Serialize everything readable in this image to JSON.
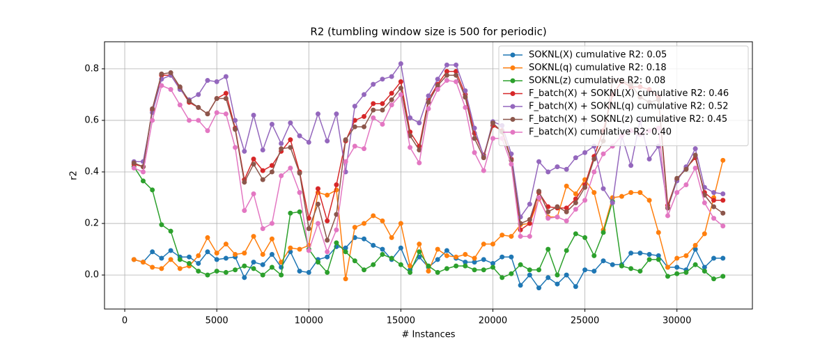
{
  "chart_data": {
    "type": "line",
    "title": "R2 (tumbling window size is 500 for periodic)",
    "x_label": "# Instances",
    "y_label": "r2",
    "x": [
      500,
      1000,
      1500,
      2000,
      2500,
      3000,
      3500,
      4000,
      4500,
      5000,
      5500,
      6000,
      6500,
      7000,
      7500,
      8000,
      8500,
      9000,
      9500,
      10000,
      10500,
      11000,
      11500,
      12000,
      12500,
      13000,
      13500,
      14000,
      14500,
      15000,
      15500,
      16000,
      16500,
      17000,
      17500,
      18000,
      18500,
      19000,
      19500,
      20000,
      20500,
      21000,
      21500,
      22000,
      22500,
      23000,
      23500,
      24000,
      24500,
      25000,
      25500,
      26000,
      26500,
      27000,
      27500,
      28000,
      28500,
      29000,
      29500,
      30000,
      30500,
      31000,
      31500,
      32000,
      32500
    ],
    "xlim": [
      -1100,
      34100
    ],
    "xticks": [
      0,
      5000,
      10000,
      15000,
      20000,
      25000,
      30000
    ],
    "ylim": [
      -0.132,
      0.905
    ],
    "yticks": [
      {
        "value": 0,
        "label": "0.0"
      },
      0.2,
      0.4,
      0.6,
      0.8
    ],
    "grid": true,
    "legend": "upper right",
    "series": [
      {
        "name": "SOKNL(X) cumulative R2: 0.05",
        "color": "#1f77b4",
        "values": [
          0.06,
          0.05,
          0.09,
          0.065,
          0.095,
          0.07,
          0.07,
          0.045,
          0.09,
          0.06,
          0.065,
          0.07,
          -0.01,
          0.05,
          0.04,
          0.08,
          0.03,
          0.09,
          0.015,
          0.01,
          0.06,
          0.07,
          0.11,
          0.105,
          0.145,
          0.14,
          0.115,
          0.1,
          0.06,
          0.105,
          0.02,
          0.07,
          0.03,
          0.06,
          0.095,
          0.065,
          0.05,
          0.05,
          0.06,
          0.045,
          0.07,
          0.07,
          -0.04,
          0.0,
          -0.05,
          -0.01,
          -0.035,
          0.0,
          -0.045,
          0.02,
          0.015,
          0.055,
          0.04,
          0.04,
          0.085,
          0.085,
          0.08,
          0.075,
          0.03,
          0.03,
          0.02,
          0.1,
          0.03,
          0.065,
          0.065
        ]
      },
      {
        "name": "SOKNL(q) cumulative R2: 0.18",
        "color": "#ff7f0e",
        "values": [
          0.06,
          0.05,
          0.03,
          0.025,
          0.06,
          0.025,
          0.035,
          0.075,
          0.145,
          0.085,
          0.12,
          0.08,
          0.085,
          0.15,
          0.08,
          0.14,
          0.05,
          0.105,
          0.1,
          0.115,
          0.32,
          0.31,
          0.33,
          -0.015,
          0.185,
          0.2,
          0.23,
          0.21,
          0.145,
          0.2,
          0.035,
          0.12,
          0.015,
          0.1,
          0.075,
          0.07,
          0.08,
          0.065,
          0.12,
          0.12,
          0.155,
          0.15,
          0.195,
          0.2,
          0.295,
          0.225,
          0.225,
          0.345,
          0.315,
          0.37,
          0.32,
          0.175,
          0.3,
          0.305,
          0.32,
          0.32,
          0.29,
          0.165,
          0.03,
          0.065,
          0.075,
          0.115,
          0.16,
          0.3,
          0.445
        ]
      },
      {
        "name": "SOKNL(z) cumulative R2: 0.08",
        "color": "#2ca02c",
        "values": [
          0.42,
          0.365,
          0.33,
          0.195,
          0.17,
          0.06,
          0.045,
          0.015,
          0.0,
          0.015,
          0.01,
          0.02,
          0.035,
          0.025,
          0.0,
          0.03,
          0.0,
          0.24,
          0.245,
          0.1,
          0.05,
          0.01,
          0.125,
          0.09,
          0.055,
          0.02,
          0.04,
          0.08,
          0.065,
          0.04,
          0.01,
          0.09,
          0.035,
          0.01,
          0.025,
          0.035,
          0.035,
          0.02,
          0.02,
          0.03,
          -0.01,
          0.005,
          0.04,
          0.02,
          0.02,
          0.1,
          0.0,
          0.095,
          0.16,
          0.145,
          0.075,
          0.165,
          0.285,
          0.035,
          0.025,
          0.015,
          0.06,
          0.06,
          -0.005,
          0.005,
          0.01,
          0.04,
          0.015,
          -0.015,
          -0.005
        ]
      },
      {
        "name": "F_batch(X) + SOKNL(X) cumulative R2: 0.46",
        "color": "#d62728",
        "values": [
          0.43,
          0.42,
          0.64,
          0.775,
          0.775,
          0.725,
          0.67,
          0.65,
          0.625,
          0.685,
          0.705,
          0.57,
          0.37,
          0.45,
          0.405,
          0.425,
          0.48,
          0.525,
          0.4,
          0.22,
          0.335,
          0.21,
          0.35,
          0.52,
          0.6,
          0.615,
          0.665,
          0.665,
          0.705,
          0.75,
          0.555,
          0.5,
          0.68,
          0.74,
          0.79,
          0.79,
          0.7,
          0.55,
          0.465,
          0.58,
          0.56,
          0.45,
          0.175,
          0.2,
          0.32,
          0.265,
          0.26,
          0.26,
          0.295,
          0.35,
          0.46,
          0.56,
          0.7,
          0.75,
          0.73,
          0.73,
          0.72,
          0.69,
          0.27,
          0.37,
          0.415,
          0.455,
          0.32,
          0.29,
          0.29
        ]
      },
      {
        "name": "F_batch(X) + SOKNL(q) cumulative R2: 0.52",
        "color": "#9467bd",
        "values": [
          0.44,
          0.44,
          0.63,
          0.76,
          0.775,
          0.72,
          0.68,
          0.7,
          0.755,
          0.75,
          0.77,
          0.6,
          0.48,
          0.62,
          0.485,
          0.585,
          0.51,
          0.59,
          0.54,
          0.515,
          0.625,
          0.52,
          0.625,
          0.4,
          0.655,
          0.7,
          0.74,
          0.76,
          0.77,
          0.82,
          0.61,
          0.59,
          0.695,
          0.76,
          0.815,
          0.815,
          0.715,
          0.57,
          0.46,
          0.595,
          0.58,
          0.47,
          0.225,
          0.275,
          0.44,
          0.4,
          0.42,
          0.41,
          0.455,
          0.475,
          0.5,
          0.335,
          0.28,
          0.54,
          0.425,
          0.6,
          0.45,
          0.5,
          0.26,
          0.365,
          0.42,
          0.49,
          0.34,
          0.32,
          0.315
        ]
      },
      {
        "name": "F_batch(X) + SOKNL(z) cumulative R2: 0.45",
        "color": "#8c564b",
        "values": [
          0.435,
          0.42,
          0.645,
          0.78,
          0.785,
          0.73,
          0.675,
          0.65,
          0.625,
          0.685,
          0.685,
          0.565,
          0.36,
          0.43,
          0.37,
          0.4,
          0.49,
          0.495,
          0.395,
          0.18,
          0.275,
          0.135,
          0.235,
          0.525,
          0.575,
          0.575,
          0.64,
          0.64,
          0.68,
          0.725,
          0.54,
          0.485,
          0.67,
          0.735,
          0.775,
          0.775,
          0.69,
          0.53,
          0.455,
          0.59,
          0.555,
          0.445,
          0.2,
          0.215,
          0.325,
          0.245,
          0.265,
          0.245,
          0.28,
          0.34,
          0.45,
          0.52,
          0.755,
          0.755,
          0.74,
          0.69,
          0.67,
          0.68,
          0.26,
          0.375,
          0.41,
          0.465,
          0.31,
          0.265,
          0.24
        ]
      },
      {
        "name": "F_batch(X) cumulative R2: 0.40",
        "color": "#e377c2",
        "values": [
          0.415,
          0.4,
          0.6,
          0.735,
          0.72,
          0.66,
          0.6,
          0.6,
          0.56,
          0.63,
          0.625,
          0.495,
          0.25,
          0.315,
          0.18,
          0.2,
          0.385,
          0.415,
          0.32,
          0.095,
          0.2,
          0.09,
          0.175,
          0.44,
          0.5,
          0.49,
          0.61,
          0.585,
          0.66,
          0.7,
          0.495,
          0.435,
          0.645,
          0.72,
          0.755,
          0.75,
          0.65,
          0.475,
          0.405,
          0.53,
          0.53,
          0.43,
          0.15,
          0.15,
          0.3,
          0.22,
          0.225,
          0.21,
          0.255,
          0.29,
          0.4,
          0.47,
          0.5,
          0.54,
          0.56,
          0.545,
          0.56,
          0.57,
          0.23,
          0.32,
          0.35,
          0.415,
          0.28,
          0.22,
          0.19
        ]
      }
    ]
  }
}
